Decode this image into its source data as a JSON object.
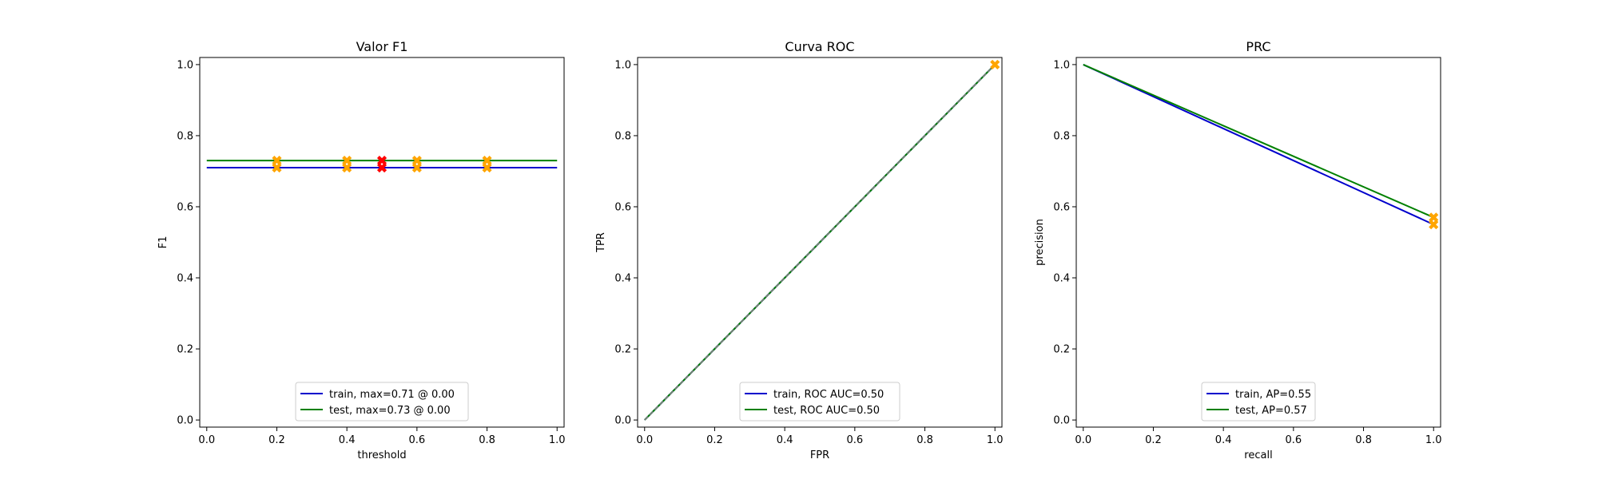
{
  "chart_data": [
    {
      "type": "line",
      "title": "Valor F1",
      "xlabel": "threshold",
      "ylabel": "F1",
      "xlim": [
        -0.02,
        1.02
      ],
      "ylim": [
        -0.02,
        1.02
      ],
      "xticks": [
        0.0,
        0.2,
        0.4,
        0.6,
        0.8,
        1.0
      ],
      "yticks": [
        0.0,
        0.2,
        0.4,
        0.6,
        0.8,
        1.0
      ],
      "xtick_labels": [
        "0.0",
        "0.2",
        "0.4",
        "0.6",
        "0.8",
        "1.0"
      ],
      "ytick_labels": [
        "0.0",
        "0.2",
        "0.4",
        "0.6",
        "0.8",
        "1.0"
      ],
      "legend_position": "lower center",
      "series": [
        {
          "name": "train, max=0.71 @ 0.00",
          "color": "#0000cc",
          "x": [
            0.0,
            1.0
          ],
          "y": [
            0.71,
            0.71
          ]
        },
        {
          "name": "test, max=0.73 @ 0.00",
          "color": "#008000",
          "x": [
            0.0,
            1.0
          ],
          "y": [
            0.73,
            0.73
          ]
        }
      ],
      "markers": [
        {
          "color": "#ffa500",
          "points": [
            [
              0.2,
              0.71
            ],
            [
              0.4,
              0.71
            ],
            [
              0.6,
              0.71
            ],
            [
              0.8,
              0.71
            ],
            [
              0.2,
              0.73
            ],
            [
              0.4,
              0.73
            ],
            [
              0.6,
              0.73
            ],
            [
              0.8,
              0.73
            ]
          ]
        },
        {
          "color": "#ff0000",
          "points": [
            [
              0.5,
              0.71
            ],
            [
              0.5,
              0.73
            ]
          ]
        }
      ]
    },
    {
      "type": "line",
      "title": "Curva ROC",
      "xlabel": "FPR",
      "ylabel": "TPR",
      "xlim": [
        -0.02,
        1.02
      ],
      "ylim": [
        -0.02,
        1.02
      ],
      "xticks": [
        0.0,
        0.2,
        0.4,
        0.6,
        0.8,
        1.0
      ],
      "yticks": [
        0.0,
        0.2,
        0.4,
        0.6,
        0.8,
        1.0
      ],
      "xtick_labels": [
        "0.0",
        "0.2",
        "0.4",
        "0.6",
        "0.8",
        "1.0"
      ],
      "ytick_labels": [
        "0.0",
        "0.2",
        "0.4",
        "0.6",
        "0.8",
        "1.0"
      ],
      "legend_position": "lower center",
      "series": [
        {
          "name": "train, ROC AUC=0.50",
          "color": "#0000cc",
          "x": [
            0.0,
            1.0
          ],
          "y": [
            0.0,
            1.0
          ]
        },
        {
          "name": "test, ROC AUC=0.50",
          "color": "#008000",
          "x": [
            0.0,
            1.0
          ],
          "y": [
            0.0,
            1.0
          ]
        }
      ],
      "reference_line": {
        "color": "#808080",
        "x": [
          0.0,
          1.0
        ],
        "y": [
          0.0,
          1.0
        ]
      },
      "markers": [
        {
          "color": "#ffa500",
          "points": [
            [
              1.0,
              1.0
            ]
          ]
        }
      ]
    },
    {
      "type": "line",
      "title": "PRC",
      "xlabel": "recall",
      "ylabel": "precision",
      "xlim": [
        -0.02,
        1.02
      ],
      "ylim": [
        -0.02,
        1.02
      ],
      "xticks": [
        0.0,
        0.2,
        0.4,
        0.6,
        0.8,
        1.0
      ],
      "yticks": [
        0.0,
        0.2,
        0.4,
        0.6,
        0.8,
        1.0
      ],
      "xtick_labels": [
        "0.0",
        "0.2",
        "0.4",
        "0.6",
        "0.8",
        "1.0"
      ],
      "ytick_labels": [
        "0.0",
        "0.2",
        "0.4",
        "0.6",
        "0.8",
        "1.0"
      ],
      "legend_position": "lower center",
      "series": [
        {
          "name": "train, AP=0.55",
          "color": "#0000cc",
          "x": [
            0.0,
            1.0
          ],
          "y": [
            1.0,
            0.55
          ]
        },
        {
          "name": "test, AP=0.57",
          "color": "#008000",
          "x": [
            0.0,
            1.0
          ],
          "y": [
            1.0,
            0.57
          ]
        }
      ],
      "markers": [
        {
          "color": "#ffa500",
          "points": [
            [
              1.0,
              0.55
            ],
            [
              1.0,
              0.57
            ]
          ]
        }
      ]
    }
  ]
}
